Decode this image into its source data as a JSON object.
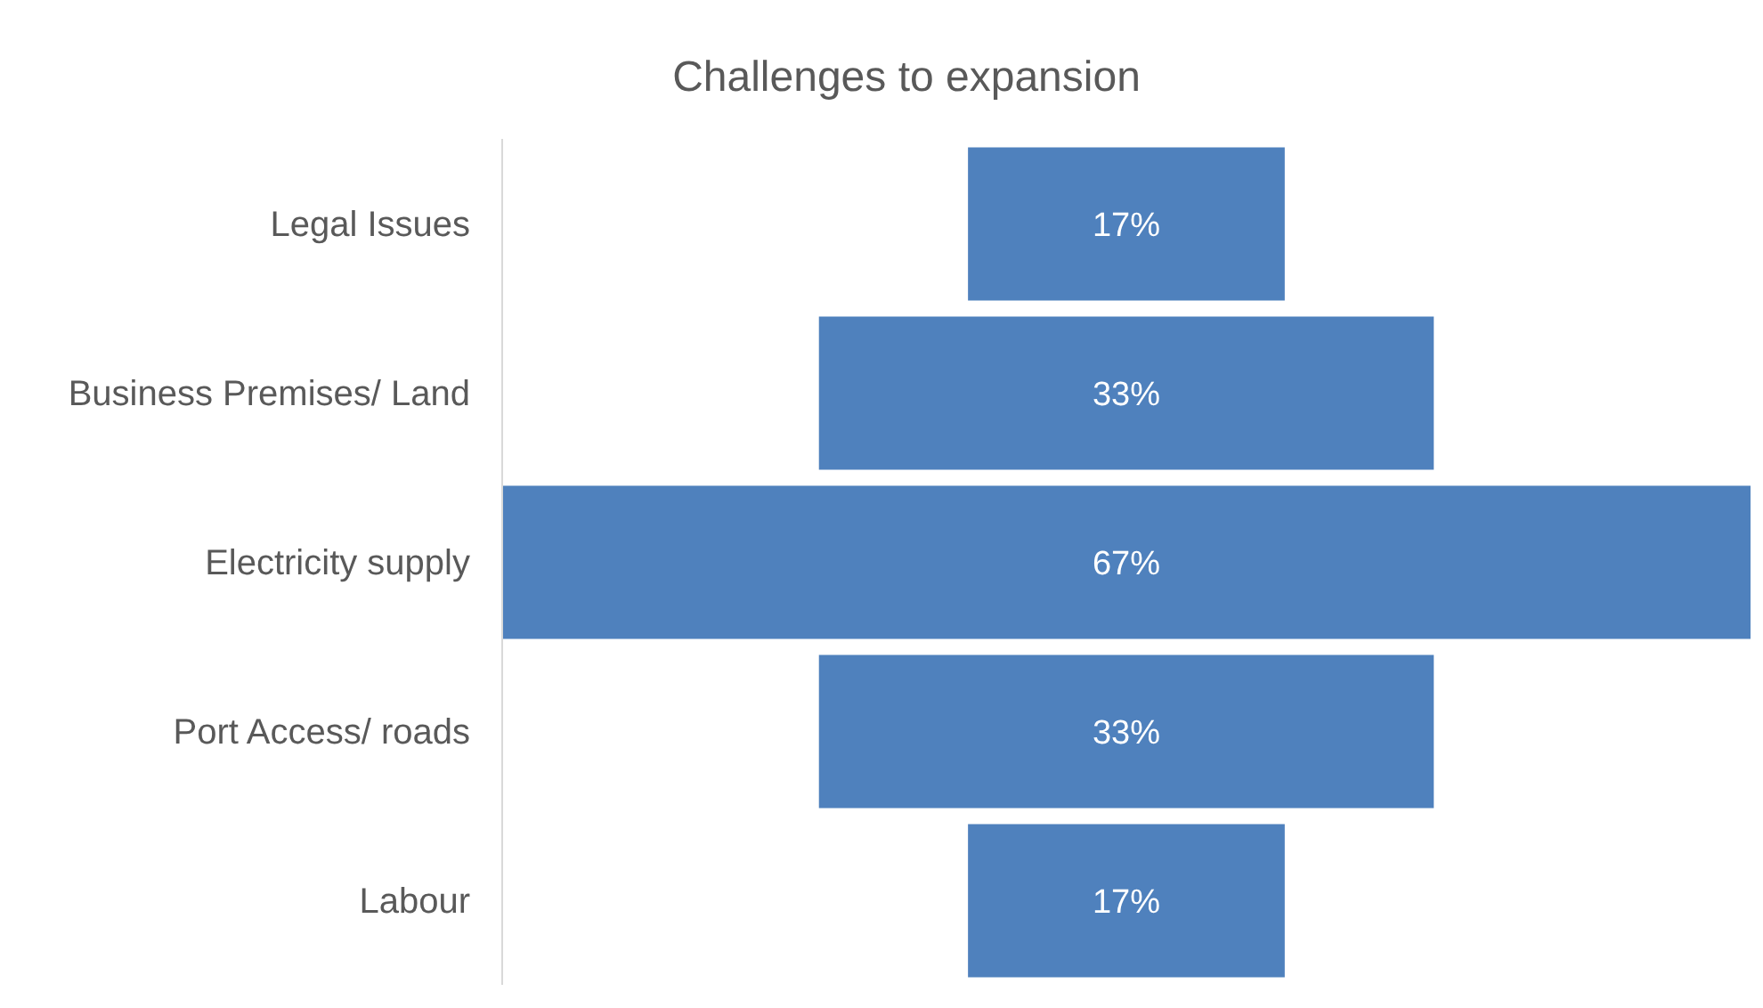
{
  "chart_data": {
    "type": "other",
    "title": "Challenges to expansion",
    "categories": [
      "Legal Issues",
      "Business Premises/ Land",
      "Electricity supply",
      "Port Access/ roads",
      "Labour"
    ],
    "values": [
      17,
      33,
      67,
      33,
      17
    ],
    "color": "#4f81bd",
    "data_labels": true,
    "value_labels": [
      "17%",
      "33%",
      "67%",
      "33%",
      "17%"
    ]
  }
}
